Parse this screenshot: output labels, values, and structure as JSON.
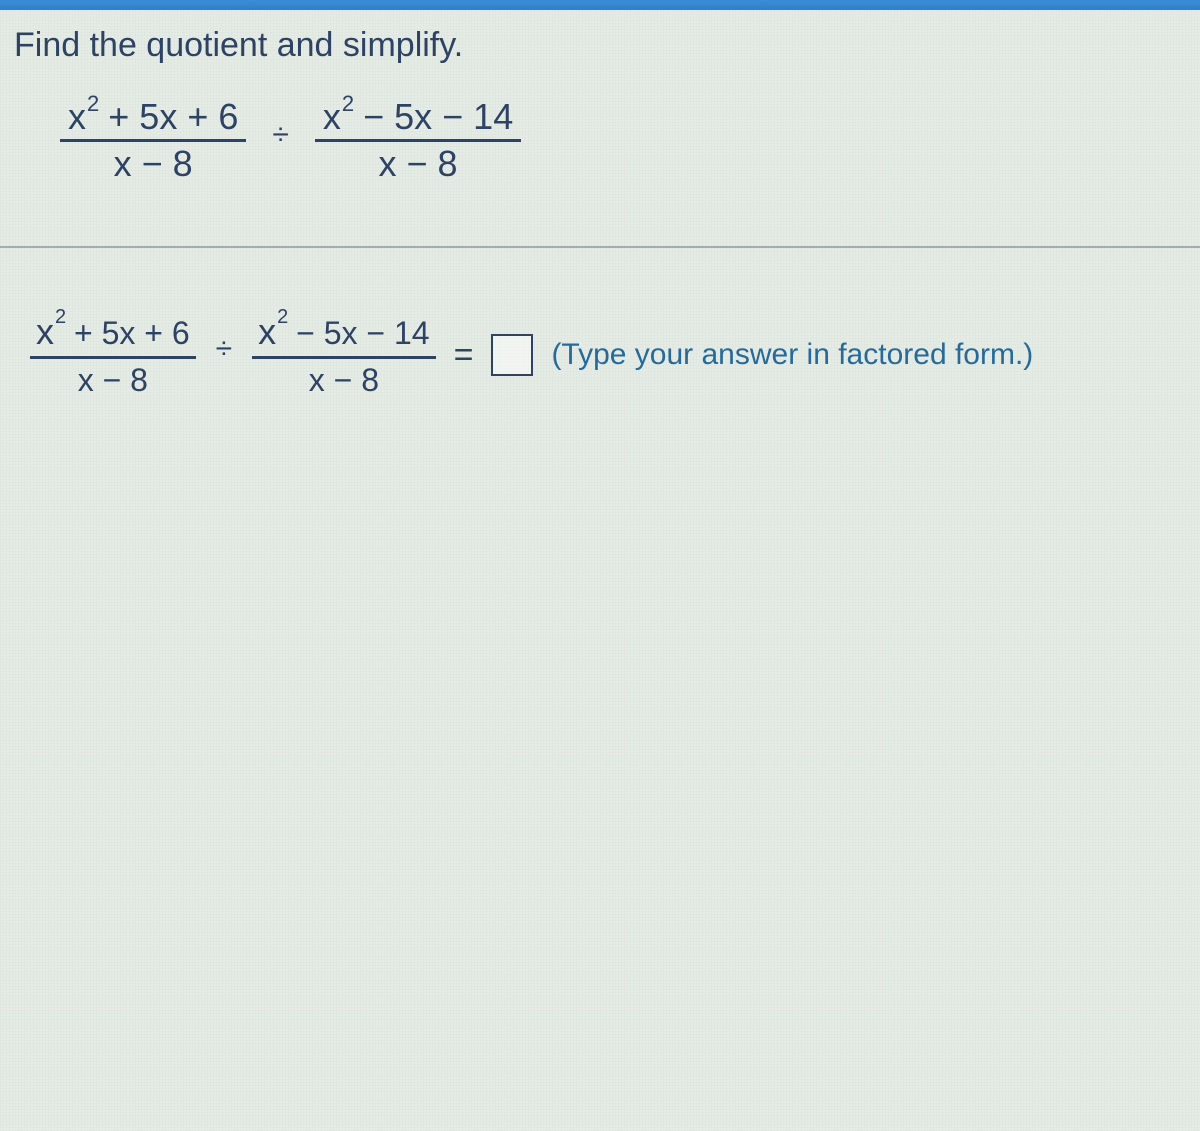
{
  "instruction": "Find the quotient and simplify.",
  "problem": {
    "left": {
      "num_base": "x",
      "num_exp": "2",
      "num_rest": " + 5x + 6",
      "den": "x − 8"
    },
    "operator": "÷",
    "right": {
      "num_base": "x",
      "num_exp": "2",
      "num_rest": " − 5x − 14",
      "den": "x − 8"
    }
  },
  "answer_line": {
    "left": {
      "num_base": "x",
      "num_exp": "2",
      "num_rest": " + 5x + 6",
      "den": "x − 8"
    },
    "operator": "÷",
    "right": {
      "num_base": "x",
      "num_exp": "2",
      "num_rest": " − 5x − 14",
      "den": "x − 8"
    },
    "equals": "=",
    "input_value": ""
  },
  "hint": "(Type your answer in factored form.)",
  "colors": {
    "text": "#2e4263",
    "hint": "#266a9a",
    "background": "#e5ebe5",
    "topbar": "#3b8ed6"
  }
}
